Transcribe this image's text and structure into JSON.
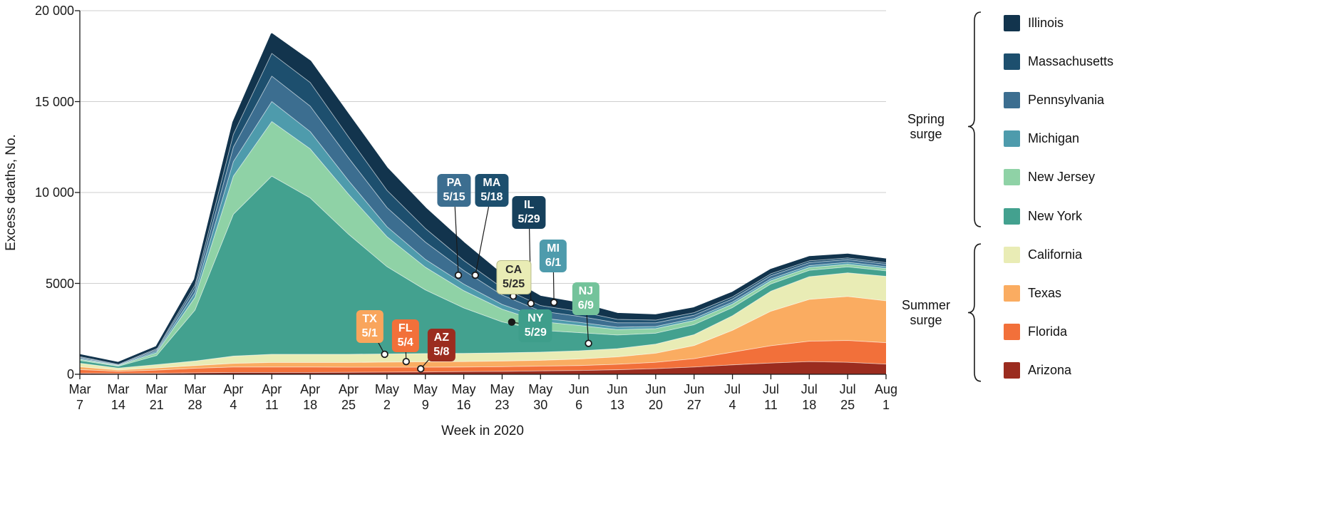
{
  "figure": {
    "y_axis_title": "Excess deaths, No.",
    "x_axis_title": "Week in 2020"
  },
  "axes": {
    "ylim": [
      0,
      20000
    ],
    "y_ticks": [
      {
        "value": 0,
        "label": "0"
      },
      {
        "value": 5000,
        "label": "5000"
      },
      {
        "value": 10000,
        "label": "10 000"
      },
      {
        "value": 15000,
        "label": "15 000"
      },
      {
        "value": 20000,
        "label": "20 000"
      }
    ],
    "x_ticks": [
      {
        "month": "Mar",
        "day": "7"
      },
      {
        "month": "Mar",
        "day": "14"
      },
      {
        "month": "Mar",
        "day": "21"
      },
      {
        "month": "Mar",
        "day": "28"
      },
      {
        "month": "Apr",
        "day": "4"
      },
      {
        "month": "Apr",
        "day": "11"
      },
      {
        "month": "Apr",
        "day": "18"
      },
      {
        "month": "Apr",
        "day": "25"
      },
      {
        "month": "May",
        "day": "2"
      },
      {
        "month": "May",
        "day": "9"
      },
      {
        "month": "May",
        "day": "16"
      },
      {
        "month": "May",
        "day": "23"
      },
      {
        "month": "May",
        "day": "30"
      },
      {
        "month": "Jun",
        "day": "6"
      },
      {
        "month": "Jun",
        "day": "13"
      },
      {
        "month": "Jun",
        "day": "20"
      },
      {
        "month": "Jun",
        "day": "27"
      },
      {
        "month": "Jul",
        "day": "4"
      },
      {
        "month": "Jul",
        "day": "11"
      },
      {
        "month": "Jul",
        "day": "18"
      },
      {
        "month": "Jul",
        "day": "25"
      },
      {
        "month": "Aug",
        "day": "1"
      }
    ]
  },
  "chart_data": {
    "type": "area",
    "stacked": true,
    "title": "",
    "xlabel": "Week in 2020",
    "ylabel": "Excess deaths, No.",
    "ylim": [
      0,
      20000
    ],
    "grid": "horizontal",
    "legend_position": "right",
    "x": [
      "Mar 7",
      "Mar 14",
      "Mar 21",
      "Mar 28",
      "Apr 4",
      "Apr 11",
      "Apr 18",
      "Apr 25",
      "May 2",
      "May 9",
      "May 16",
      "May 23",
      "May 30",
      "Jun 6",
      "Jun 13",
      "Jun 20",
      "Jun 27",
      "Jul 4",
      "Jul 11",
      "Jul 18",
      "Jul 25",
      "Aug 1"
    ],
    "series": [
      {
        "name": "Arizona",
        "color": "#9B2C1F",
        "values": [
          60,
          40,
          50,
          80,
          100,
          100,
          100,
          110,
          120,
          130,
          150,
          160,
          190,
          210,
          250,
          310,
          400,
          520,
          620,
          700,
          660,
          560
        ]
      },
      {
        "name": "Florida",
        "color": "#F2703A",
        "values": [
          200,
          120,
          180,
          250,
          300,
          300,
          300,
          280,
          270,
          260,
          250,
          260,
          260,
          270,
          300,
          350,
          460,
          700,
          950,
          1120,
          1200,
          1180
        ]
      },
      {
        "name": "Texas",
        "color": "#FAAC61",
        "values": [
          150,
          80,
          120,
          150,
          200,
          250,
          250,
          260,
          280,
          300,
          300,
          310,
          320,
          360,
          410,
          500,
          720,
          1200,
          1900,
          2300,
          2420,
          2300
        ]
      },
      {
        "name": "California",
        "color": "#E9ECB5",
        "values": [
          200,
          100,
          180,
          250,
          400,
          450,
          450,
          450,
          450,
          450,
          450,
          450,
          450,
          450,
          450,
          500,
          600,
          800,
          1100,
          1250,
          1300,
          1350
        ]
      },
      {
        "name": "New York",
        "color": "#43A18F",
        "values": [
          150,
          100,
          500,
          2800,
          7800,
          9800,
          8600,
          6600,
          4800,
          3500,
          2500,
          1700,
          1200,
          1000,
          750,
          600,
          550,
          450,
          400,
          350,
          330,
          300
        ]
      },
      {
        "name": "New Jersey",
        "color": "#8FD2A6",
        "values": [
          60,
          40,
          150,
          700,
          2100,
          3000,
          2700,
          2200,
          1650,
          1250,
          950,
          700,
          480,
          400,
          300,
          250,
          230,
          190,
          170,
          150,
          140,
          130
        ]
      },
      {
        "name": "Michigan",
        "color": "#4E9BAC",
        "values": [
          50,
          30,
          80,
          250,
          800,
          1100,
          950,
          750,
          550,
          430,
          360,
          260,
          200,
          170,
          130,
          120,
          110,
          110,
          110,
          110,
          110,
          100
        ]
      },
      {
        "name": "Pennsylvania",
        "color": "#3C6E90",
        "values": [
          60,
          40,
          80,
          250,
          800,
          1400,
          1400,
          1250,
          1050,
          950,
          750,
          520,
          380,
          330,
          240,
          200,
          180,
          170,
          170,
          160,
          150,
          130
        ]
      },
      {
        "name": "Massachusetts",
        "color": "#1D4F6E",
        "values": [
          40,
          30,
          60,
          180,
          700,
          1250,
          1300,
          1150,
          950,
          750,
          550,
          400,
          300,
          270,
          190,
          150,
          140,
          120,
          110,
          100,
          90,
          90
        ]
      },
      {
        "name": "Illinois",
        "color": "#12344D",
        "values": [
          80,
          40,
          100,
          300,
          650,
          1050,
          1150,
          1200,
          1200,
          1100,
          950,
          700,
          480,
          430,
          300,
          260,
          240,
          220,
          210,
          200,
          180,
          170
        ]
      }
    ]
  },
  "legend": {
    "items": [
      {
        "label": "Illinois",
        "color": "#12344D"
      },
      {
        "label": "Massachusetts",
        "color": "#1D4F6E"
      },
      {
        "label": "Pennsylvania",
        "color": "#3C6E90"
      },
      {
        "label": "Michigan",
        "color": "#4E9BAC"
      },
      {
        "label": "New Jersey",
        "color": "#8FD2A6"
      },
      {
        "label": "New York",
        "color": "#43A18F"
      },
      {
        "label": "California",
        "color": "#E9ECB5"
      },
      {
        "label": "Texas",
        "color": "#FAAC61"
      },
      {
        "label": "Florida",
        "color": "#F2703A"
      },
      {
        "label": "Arizona",
        "color": "#9B2C1F"
      }
    ],
    "groups": [
      {
        "label_line1": "Spring",
        "label_line2": "surge",
        "from": 0,
        "to": 5
      },
      {
        "label_line1": "Summer",
        "label_line2": "surge",
        "from": 6,
        "to": 9
      }
    ]
  },
  "annotations": [
    {
      "state": "TX",
      "date": "5/1",
      "box_week": 7.55,
      "box_value": 2620,
      "dot_week": 7.94,
      "dot_value": 1100,
      "bg": "#F9A55C",
      "fg": "#FFFFFF",
      "dot_filled": false
    },
    {
      "state": "FL",
      "date": "5/4",
      "box_week": 8.48,
      "box_value": 2100,
      "dot_week": 8.5,
      "dot_value": 700,
      "bg": "#F2703A",
      "fg": "#FFFFFF",
      "dot_filled": false
    },
    {
      "state": "AZ",
      "date": "5/8",
      "box_week": 9.42,
      "box_value": 1600,
      "dot_week": 8.88,
      "dot_value": 300,
      "bg": "#9B2C1F",
      "fg": "#FFFFFF",
      "dot_filled": false
    },
    {
      "state": "PA",
      "date": "5/15",
      "box_week": 9.75,
      "box_value": 10100,
      "dot_week": 9.86,
      "dot_value": 5450,
      "bg": "#3C6E90",
      "fg": "#FFFFFF",
      "dot_filled": false
    },
    {
      "state": "MA",
      "date": "5/18",
      "box_week": 10.73,
      "box_value": 10100,
      "dot_week": 10.3,
      "dot_value": 5450,
      "bg": "#1D4F6E",
      "fg": "#FFFFFF",
      "dot_filled": false
    },
    {
      "state": "CA",
      "date": "5/25",
      "box_week": 11.3,
      "box_value": 5350,
      "dot_week": 11.29,
      "dot_value": 4300,
      "bg": "#E9ECB5",
      "fg": "#2B2B2B",
      "dot_filled": false
    },
    {
      "state": "IL",
      "date": "5/29",
      "box_week": 11.7,
      "box_value": 8900,
      "dot_week": 11.75,
      "dot_value": 3900,
      "bg": "#16405C",
      "fg": "#FFFFFF",
      "dot_filled": false
    },
    {
      "state": "MI",
      "date": "6/1",
      "box_week": 12.33,
      "box_value": 6500,
      "dot_week": 12.35,
      "dot_value": 3950,
      "bg": "#4E9BAC",
      "fg": "#FFFFFF",
      "dot_filled": false
    },
    {
      "state": "NY",
      "date": "5/29",
      "box_week": 11.87,
      "box_value": 2650,
      "dot_week": 11.25,
      "dot_value": 2870,
      "bg": "#3E9E8B",
      "fg": "#FFFFFF",
      "dot_filled": true
    },
    {
      "state": "NJ",
      "date": "6/9",
      "box_week": 13.18,
      "box_value": 4150,
      "dot_week": 13.25,
      "dot_value": 1700,
      "bg": "#74C39B",
      "fg": "#FFFFFF",
      "dot_filled": false
    }
  ]
}
